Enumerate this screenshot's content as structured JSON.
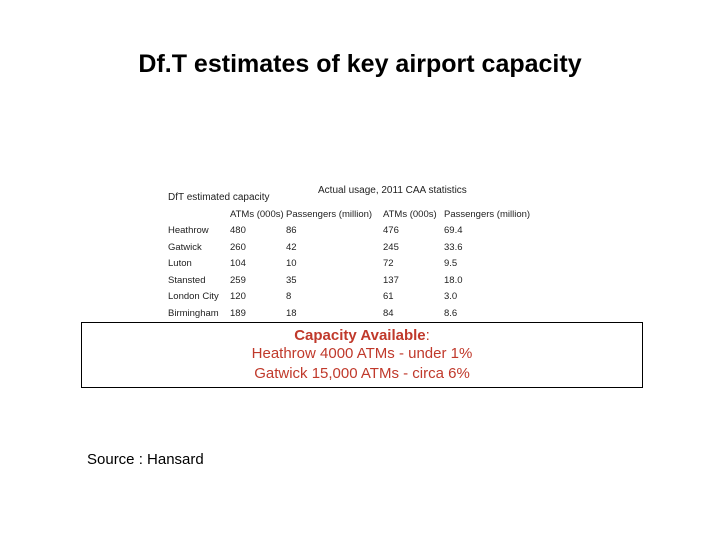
{
  "slide": {
    "title": "Df.T estimates of key airport capacity",
    "source": "Source : Hansard"
  },
  "table": {
    "dft_header": "DfT estimated capacity",
    "caa_header": "Actual usage, 2011 CAA statistics",
    "columns": [
      "ATMs (000s)",
      "Passengers (million)",
      "ATMs (000s)",
      "Passengers (million)"
    ],
    "rows": [
      {
        "airport": "Heathrow",
        "dft_atms": "480",
        "dft_pax": "86",
        "act_atms": "476",
        "act_pax": "69.4"
      },
      {
        "airport": "Gatwick",
        "dft_atms": "260",
        "dft_pax": "42",
        "act_atms": "245",
        "act_pax": "33.6"
      },
      {
        "airport": "Luton",
        "dft_atms": "104",
        "dft_pax": "10",
        "act_atms": "72",
        "act_pax": "9.5"
      },
      {
        "airport": "Stansted",
        "dft_atms": "259",
        "dft_pax": "35",
        "act_atms": "137",
        "act_pax": "18.0"
      },
      {
        "airport": "London City",
        "dft_atms": "120",
        "dft_pax": "8",
        "act_atms": "61",
        "act_pax": "3.0"
      },
      {
        "airport": "Birmingham",
        "dft_atms": "189",
        "dft_pax": "18",
        "act_atms": "84",
        "act_pax": "8.6"
      }
    ]
  },
  "callout": {
    "heading_bold": "Capacity Available",
    "heading_colon": ":",
    "line2": "Heathrow 4000 ATMs - under 1%",
    "line3": "Gatwick 15,000 ATMs - circa 6%"
  }
}
